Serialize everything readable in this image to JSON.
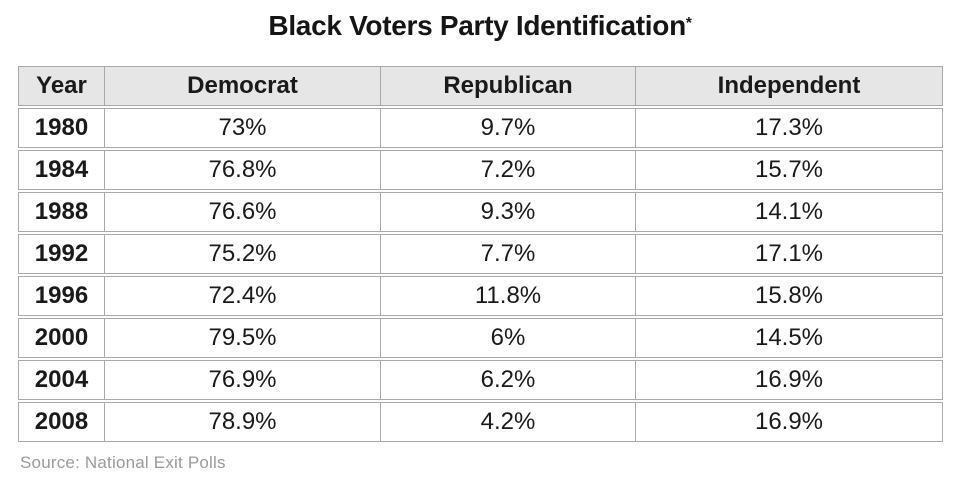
{
  "title": {
    "text": "Black Voters Party Identification",
    "asterisk": "*"
  },
  "source": "Source: National Exit Polls",
  "colors": {
    "header_background": "#e6e6e6",
    "grid_line": "#a9a9a9",
    "text": "#1a1a1a",
    "source_text": "#9b9b9b"
  },
  "chart_data": {
    "type": "table",
    "title": "Black Voters Party Identification*",
    "columns": [
      "Year",
      "Democrat",
      "Republican",
      "Independent"
    ],
    "rows": [
      [
        "1980",
        "73%",
        "9.7%",
        "17.3%"
      ],
      [
        "1984",
        "76.8%",
        "7.2%",
        "15.7%"
      ],
      [
        "1988",
        "76.6%",
        "9.3%",
        "14.1%"
      ],
      [
        "1992",
        "75.2%",
        "7.7%",
        "17.1%"
      ],
      [
        "1996",
        "72.4%",
        "11.8%",
        "15.8%"
      ],
      [
        "2000",
        "79.5%",
        "6%",
        "14.5%"
      ],
      [
        "2004",
        "76.9%",
        "6.2%",
        "16.9%"
      ],
      [
        "2008",
        "78.9%",
        "4.2%",
        "16.9%"
      ]
    ],
    "series": [
      {
        "name": "Democrat",
        "values": [
          73,
          76.8,
          76.6,
          75.2,
          72.4,
          79.5,
          76.9,
          78.9
        ]
      },
      {
        "name": "Republican",
        "values": [
          9.7,
          7.2,
          9.3,
          7.7,
          11.8,
          6,
          6.2,
          4.2
        ]
      },
      {
        "name": "Independent",
        "values": [
          17.3,
          15.7,
          14.1,
          17.1,
          15.8,
          14.5,
          16.9,
          16.9
        ]
      }
    ],
    "x": [
      1980,
      1984,
      1988,
      1992,
      1996,
      2000,
      2004,
      2008
    ],
    "source": "Source: National Exit Polls"
  }
}
